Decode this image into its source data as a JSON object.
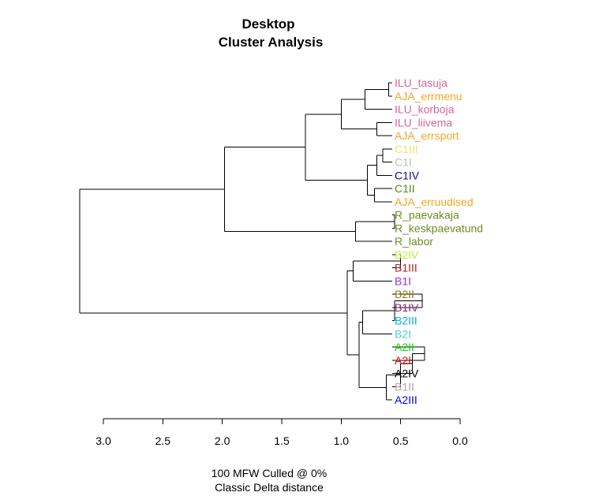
{
  "chart_data": {
    "type": "dendrogram",
    "title": "Desktop",
    "subtitle": "Cluster Analysis",
    "footer": [
      "100 MFW  Culled @ 0%",
      "Classic Delta distance"
    ],
    "xlim": [
      3.0,
      0.0
    ],
    "ticks": [
      3.0,
      2.5,
      2.0,
      1.5,
      1.0,
      0.5,
      0.0
    ],
    "tick_labels": [
      "3.0",
      "2.5",
      "2.0",
      "1.5",
      "1.0",
      "0.5",
      "0.0"
    ],
    "leaves": [
      {
        "label": "ILU_tasuja",
        "color": "#D4679A"
      },
      {
        "label": "AJA_errmenu",
        "color": "#F5A623"
      },
      {
        "label": "ILU_korboja",
        "color": "#D4679A"
      },
      {
        "label": "ILU_liivema",
        "color": "#D4679A"
      },
      {
        "label": "AJA_errsport",
        "color": "#F5A623"
      },
      {
        "label": "C1III",
        "color": "#F0E070"
      },
      {
        "label": "C1I",
        "color": "#BEBEBE"
      },
      {
        "label": "C1IV",
        "color": "#0A0A8C"
      },
      {
        "label": "C1II",
        "color": "#5A8A1E"
      },
      {
        "label": "AJA_erruudised",
        "color": "#F5A623"
      },
      {
        "label": "R_paevakaja",
        "color": "#6B8E23"
      },
      {
        "label": "R_keskpaevatund",
        "color": "#6B8E23"
      },
      {
        "label": "R_labor",
        "color": "#6B8E23"
      },
      {
        "label": "B2IV",
        "color": "#B8F040"
      },
      {
        "label": "B1III",
        "color": "#B22222"
      },
      {
        "label": "B1I",
        "color": "#9932CC"
      },
      {
        "label": "B2II",
        "color": "#9A7B1A"
      },
      {
        "label": "B1IV",
        "color": "#8B2A7A"
      },
      {
        "label": "B2III",
        "color": "#00B4D8"
      },
      {
        "label": "B2I",
        "color": "#48D1CC"
      },
      {
        "label": "A2II",
        "color": "#00DD00"
      },
      {
        "label": "A2I",
        "color": "#EE0000"
      },
      {
        "label": "A2IV",
        "color": "#000000"
      },
      {
        "label": "B1II",
        "color": "#A9A9A9"
      },
      {
        "label": "A2III",
        "color": "#0000EE"
      }
    ],
    "merges": [
      {
        "id": "m1",
        "children": [
          0,
          1
        ],
        "height": 0.6
      },
      {
        "id": "m2",
        "children": [
          "m1",
          2
        ],
        "height": 0.8
      },
      {
        "id": "m3",
        "children": [
          3,
          4
        ],
        "height": 0.7
      },
      {
        "id": "m4",
        "children": [
          "m2",
          "m3"
        ],
        "height": 1.0
      },
      {
        "id": "m5",
        "children": [
          5,
          6
        ],
        "height": 0.65
      },
      {
        "id": "m6",
        "children": [
          "m5",
          7
        ],
        "height": 0.7
      },
      {
        "id": "m7",
        "children": [
          8,
          9
        ],
        "height": 0.72
      },
      {
        "id": "m8",
        "children": [
          "m6",
          "m7"
        ],
        "height": 0.78
      },
      {
        "id": "m9",
        "children": [
          "m4",
          "m8"
        ],
        "height": 1.3
      },
      {
        "id": "m10",
        "children": [
          10,
          11
        ],
        "height": 0.55
      },
      {
        "id": "m11",
        "children": [
          "m10",
          12
        ],
        "height": 0.88
      },
      {
        "id": "m12",
        "children": [
          "m9",
          "m11"
        ],
        "height": 1.98
      },
      {
        "id": "m13",
        "children": [
          13,
          14
        ],
        "height": 0.5
      },
      {
        "id": "m14",
        "children": [
          "m13",
          15
        ],
        "height": 0.9
      },
      {
        "id": "m15",
        "children": [
          16,
          17
        ],
        "height": 0.32
      },
      {
        "id": "m16",
        "children": [
          "m15",
          18
        ],
        "height": 0.55
      },
      {
        "id": "m17",
        "children": [
          "m16",
          19
        ],
        "height": 0.82
      },
      {
        "id": "m18",
        "children": [
          20,
          21
        ],
        "height": 0.3
      },
      {
        "id": "m19",
        "children": [
          "m18",
          22
        ],
        "height": 0.4
      },
      {
        "id": "m20",
        "children": [
          "m19",
          23
        ],
        "height": 0.5
      },
      {
        "id": "m21",
        "children": [
          "m20",
          24
        ],
        "height": 0.62
      },
      {
        "id": "m22",
        "children": [
          "m17",
          "m21"
        ],
        "height": 0.85
      },
      {
        "id": "m23",
        "children": [
          "m14",
          "m22"
        ],
        "height": 0.95
      },
      {
        "id": "m24",
        "children": [
          "m12",
          "m23"
        ],
        "height": 3.2
      }
    ]
  }
}
